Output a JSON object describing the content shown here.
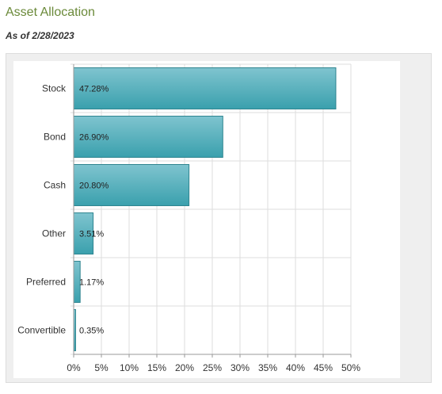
{
  "header": {
    "title": "Asset Allocation",
    "as_of": "As of 2/28/2023"
  },
  "colors": {
    "bar_fill_light": "#7fc4cf",
    "bar_fill_dark": "#3aa0ad",
    "bar_stroke": "#2f8590",
    "grid": "#dddddd",
    "title": "#6b8a3a"
  },
  "chart_data": {
    "type": "bar",
    "orientation": "horizontal",
    "categories": [
      "Stock",
      "Bond",
      "Cash",
      "Other",
      "Preferred",
      "Convertible"
    ],
    "values": [
      47.28,
      26.9,
      20.8,
      3.51,
      1.17,
      0.35
    ],
    "value_labels": [
      "47.28%",
      "26.90%",
      "20.80%",
      "3.51%",
      "1.17%",
      "0.35%"
    ],
    "xlim": [
      0,
      50
    ],
    "x_ticks": [
      0,
      5,
      10,
      15,
      20,
      25,
      30,
      35,
      40,
      45,
      50
    ],
    "x_tick_labels": [
      "0%",
      "5%",
      "10%",
      "15%",
      "20%",
      "25%",
      "30%",
      "35%",
      "40%",
      "45%",
      "50%"
    ],
    "grid": true,
    "title": "",
    "xlabel": "",
    "ylabel": ""
  }
}
